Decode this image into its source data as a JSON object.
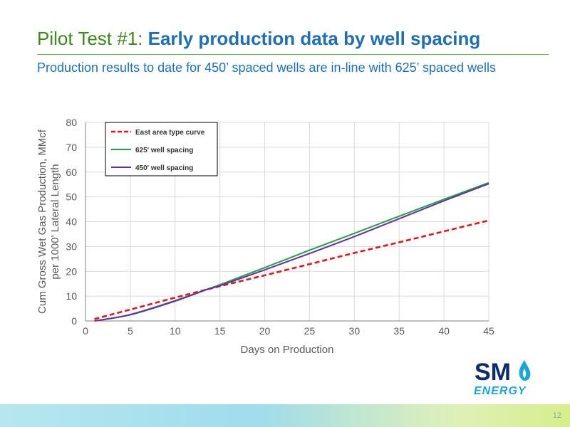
{
  "slide": {
    "title_prefix": "Pilot Test #1: ",
    "title_bold": "Early production data by well spacing",
    "subtitle": "Production results to date for 450’ spaced wells are in-line with 625’ spaced wells",
    "page_number": "12"
  },
  "logo": {
    "top_text": "SM",
    "bottom_text": "ENERGY",
    "icon": "flame-icon",
    "colors": {
      "dark": "#0b2d6b",
      "accent": "#1aa7d8"
    }
  },
  "chart_data": {
    "type": "line",
    "title": "",
    "xlabel": "Days on Production",
    "ylabel_lines": [
      "Cum Gross Wet Gas Production, MMcf",
      "per 1000' Lateral Length"
    ],
    "xlim": [
      0,
      45
    ],
    "ylim": [
      0,
      80
    ],
    "x_ticks": [
      0,
      5,
      10,
      15,
      20,
      25,
      30,
      35,
      40,
      45
    ],
    "y_ticks": [
      0,
      10,
      20,
      30,
      40,
      50,
      60,
      70,
      80
    ],
    "grid": true,
    "legend_position": "top-left",
    "series": [
      {
        "name": "East area type curve",
        "color": "#e0181e",
        "style": "dashed",
        "x": [
          1,
          5,
          10,
          15,
          20,
          25,
          30,
          35,
          40,
          45
        ],
        "y": [
          0.8,
          4.6,
          9.4,
          14.0,
          18.4,
          22.9,
          27.4,
          31.7,
          36.1,
          40.5
        ]
      },
      {
        "name": "625' well spacing",
        "color": "#1fa24a",
        "style": "solid",
        "x": [
          1,
          5,
          10,
          13.5,
          15,
          20,
          25,
          30,
          35,
          40,
          45
        ],
        "y": [
          0,
          2.6,
          8.2,
          12.7,
          14.6,
          21.5,
          28.5,
          35.3,
          42.2,
          49.0,
          55.7
        ]
      },
      {
        "name": "450' well spacing",
        "color": "#6a2d9a",
        "style": "solid",
        "x": [
          1,
          5,
          10,
          13.5,
          15,
          20,
          25,
          30,
          35,
          40,
          45
        ],
        "y": [
          0,
          2.5,
          8.0,
          12.6,
          14.2,
          20.6,
          27.2,
          34.0,
          41.2,
          48.4,
          55.3
        ]
      }
    ]
  }
}
